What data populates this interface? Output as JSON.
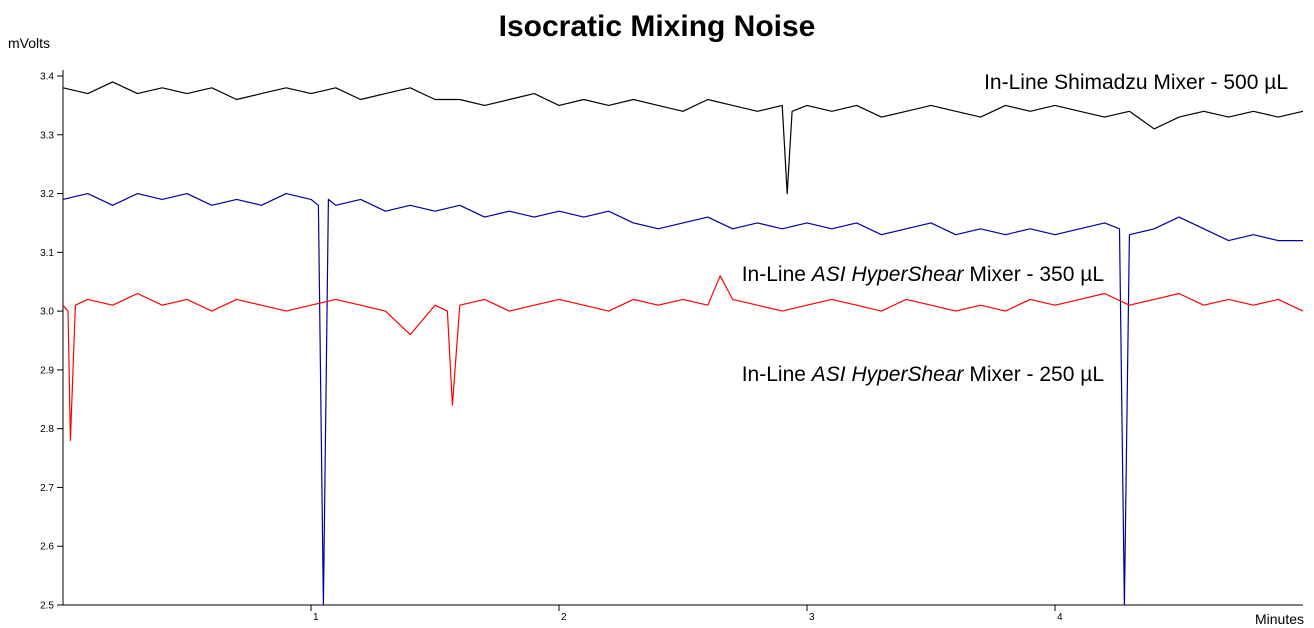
{
  "chart_data": {
    "type": "line",
    "title": "Isocratic Mixing Noise",
    "xlabel": "Minutes",
    "ylabel": "mVolts",
    "xlim": [
      0,
      5
    ],
    "ylim": [
      2.5,
      3.4
    ],
    "x_ticks": [
      "1",
      "2",
      "3",
      "4"
    ],
    "y_ticks": [
      "2.5",
      "2.6",
      "2.7",
      "2.8",
      "2.9",
      "3.0",
      "3.1",
      "3.2",
      "3.3",
      "3.4"
    ],
    "grid": false,
    "series": [
      {
        "name": "In-Line Shimadzu Mixer - 500 µL",
        "label_parts": [
          "In-Line Shimadzu Mixer - 500 µL"
        ],
        "color": "#000000",
        "x": [
          0.0,
          0.1,
          0.2,
          0.3,
          0.4,
          0.5,
          0.6,
          0.7,
          0.8,
          0.9,
          1.0,
          1.1,
          1.2,
          1.3,
          1.4,
          1.5,
          1.6,
          1.7,
          1.8,
          1.9,
          2.0,
          2.1,
          2.2,
          2.3,
          2.4,
          2.5,
          2.6,
          2.7,
          2.8,
          2.9,
          2.92,
          2.94,
          3.0,
          3.1,
          3.2,
          3.3,
          3.4,
          3.5,
          3.6,
          3.7,
          3.8,
          3.9,
          4.0,
          4.1,
          4.2,
          4.3,
          4.4,
          4.5,
          4.6,
          4.7,
          4.8,
          4.9,
          5.0
        ],
        "values": [
          3.38,
          3.37,
          3.39,
          3.37,
          3.38,
          3.37,
          3.38,
          3.36,
          3.37,
          3.38,
          3.37,
          3.38,
          3.36,
          3.37,
          3.38,
          3.36,
          3.36,
          3.35,
          3.36,
          3.37,
          3.35,
          3.36,
          3.35,
          3.36,
          3.35,
          3.34,
          3.36,
          3.35,
          3.34,
          3.35,
          3.2,
          3.34,
          3.35,
          3.34,
          3.35,
          3.33,
          3.34,
          3.35,
          3.34,
          3.33,
          3.35,
          3.34,
          3.35,
          3.34,
          3.33,
          3.34,
          3.31,
          3.33,
          3.34,
          3.33,
          3.34,
          3.33,
          3.34
        ]
      },
      {
        "name": "In-Line ASI HyperShear Mixer - 350 µL",
        "label_parts": [
          "In-Line ",
          "ASI HyperShear",
          " Mixer - 350 µL"
        ],
        "color": "#00009c",
        "x": [
          0.0,
          0.1,
          0.2,
          0.3,
          0.4,
          0.5,
          0.6,
          0.7,
          0.8,
          0.9,
          1.0,
          1.03,
          1.05,
          1.07,
          1.1,
          1.2,
          1.3,
          1.4,
          1.5,
          1.6,
          1.7,
          1.8,
          1.9,
          2.0,
          2.1,
          2.2,
          2.3,
          2.4,
          2.5,
          2.6,
          2.7,
          2.8,
          2.9,
          3.0,
          3.1,
          3.2,
          3.3,
          3.4,
          3.5,
          3.6,
          3.7,
          3.8,
          3.9,
          4.0,
          4.1,
          4.2,
          4.26,
          4.28,
          4.3,
          4.4,
          4.5,
          4.6,
          4.7,
          4.8,
          4.9,
          5.0
        ],
        "values": [
          3.19,
          3.2,
          3.18,
          3.2,
          3.19,
          3.2,
          3.18,
          3.19,
          3.18,
          3.2,
          3.19,
          3.18,
          2.5,
          3.19,
          3.18,
          3.19,
          3.17,
          3.18,
          3.17,
          3.18,
          3.16,
          3.17,
          3.16,
          3.17,
          3.16,
          3.17,
          3.15,
          3.14,
          3.15,
          3.16,
          3.14,
          3.15,
          3.14,
          3.15,
          3.14,
          3.15,
          3.13,
          3.14,
          3.15,
          3.13,
          3.14,
          3.13,
          3.14,
          3.13,
          3.14,
          3.15,
          3.14,
          2.5,
          3.13,
          3.14,
          3.16,
          3.14,
          3.12,
          3.13,
          3.12,
          3.12
        ]
      },
      {
        "name": "In-Line ASI HyperShear Mixer - 250 µL",
        "label_parts": [
          "In-Line ",
          "ASI HyperShear",
          " Mixer - 250 µL"
        ],
        "color": "#ff0000",
        "x": [
          0.0,
          0.02,
          0.03,
          0.05,
          0.1,
          0.2,
          0.3,
          0.4,
          0.5,
          0.6,
          0.7,
          0.8,
          0.9,
          1.0,
          1.1,
          1.2,
          1.3,
          1.4,
          1.5,
          1.55,
          1.57,
          1.6,
          1.7,
          1.8,
          1.9,
          2.0,
          2.1,
          2.2,
          2.3,
          2.4,
          2.5,
          2.6,
          2.65,
          2.7,
          2.8,
          2.9,
          3.0,
          3.1,
          3.2,
          3.3,
          3.4,
          3.5,
          3.6,
          3.7,
          3.8,
          3.9,
          4.0,
          4.1,
          4.2,
          4.3,
          4.4,
          4.5,
          4.6,
          4.7,
          4.8,
          4.9,
          5.0
        ],
        "values": [
          3.01,
          3.0,
          2.78,
          3.01,
          3.02,
          3.01,
          3.03,
          3.01,
          3.02,
          3.0,
          3.02,
          3.01,
          3.0,
          3.01,
          3.02,
          3.01,
          3.0,
          2.96,
          3.01,
          3.0,
          2.84,
          3.01,
          3.02,
          3.0,
          3.01,
          3.02,
          3.01,
          3.0,
          3.02,
          3.01,
          3.02,
          3.01,
          3.06,
          3.02,
          3.01,
          3.0,
          3.01,
          3.02,
          3.01,
          3.0,
          3.02,
          3.01,
          3.0,
          3.01,
          3.0,
          3.02,
          3.01,
          3.02,
          3.03,
          3.01,
          3.02,
          3.03,
          3.01,
          3.02,
          3.01,
          3.02,
          3.0
        ]
      }
    ]
  }
}
